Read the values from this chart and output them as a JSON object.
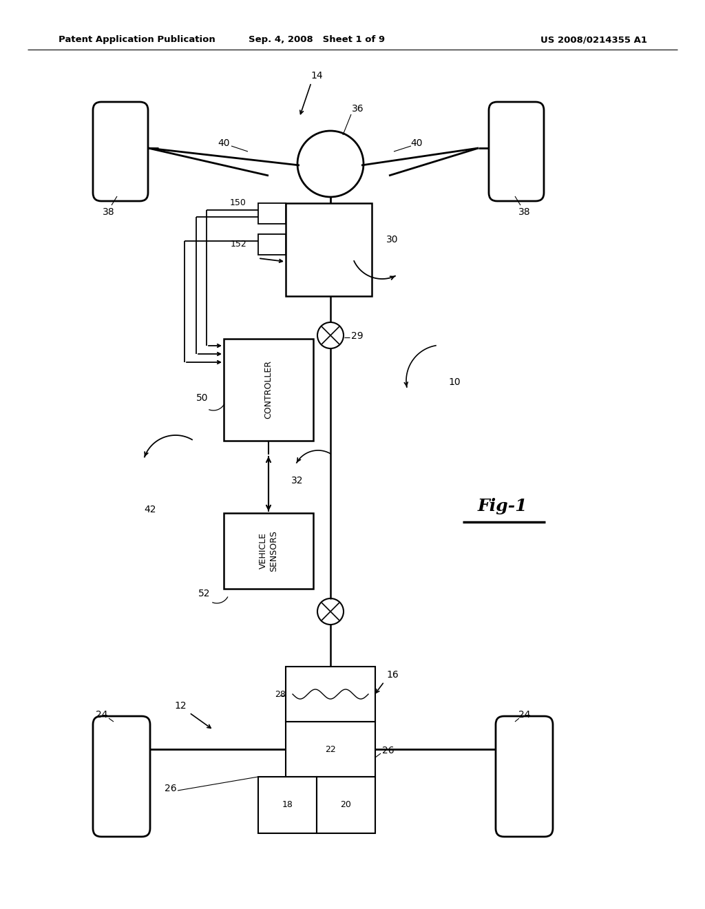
{
  "bg_color": "#ffffff",
  "lc": "#000000",
  "header_left": "Patent Application Publication",
  "header_mid": "Sep. 4, 2008   Sheet 1 of 9",
  "header_right": "US 2008/0214355 A1"
}
